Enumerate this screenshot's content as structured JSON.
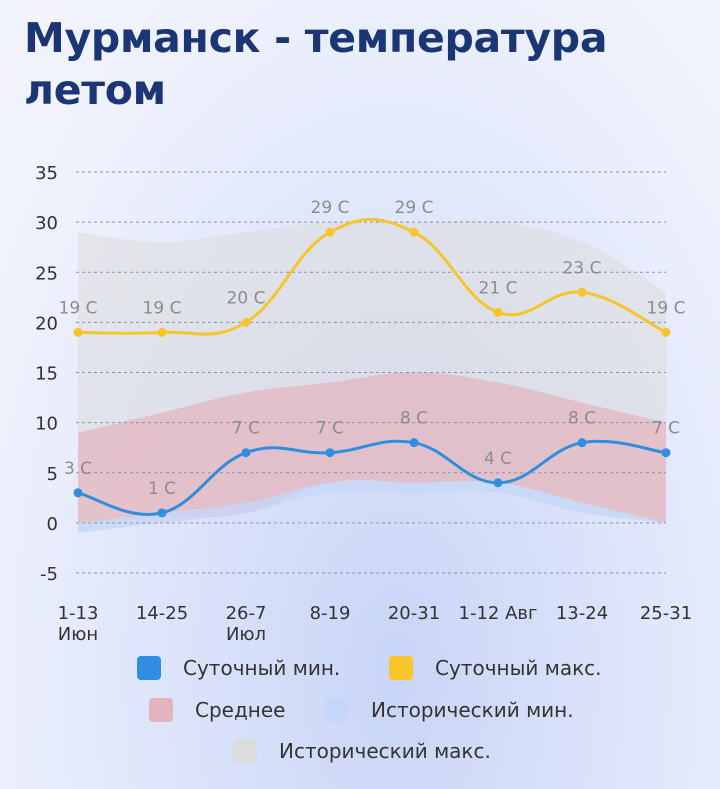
{
  "title": "Мурманск - температура летом",
  "colors": {
    "daily_min": "#2f8ee0",
    "daily_max": "#f7c52b",
    "average": "#e5b3bd",
    "historic_min": "#c4d7fb",
    "historic_max": "#dcdcdc"
  },
  "chart_data": {
    "type": "line",
    "categories": [
      "1-13 Июн",
      "14-25",
      "26-7 Июл",
      "8-19",
      "20-31",
      "1-12 Авг",
      "13-24",
      "25-31"
    ],
    "category_lines": [
      [
        "1-13",
        "Июн"
      ],
      [
        "14-25"
      ],
      [
        "26-7",
        "Июл"
      ],
      [
        "8-19"
      ],
      [
        "20-31"
      ],
      [
        "1-12 Авг"
      ],
      [
        "13-24"
      ],
      [
        "25-31"
      ]
    ],
    "ylim": [
      -5,
      35
    ],
    "yticks": [
      35,
      30,
      25,
      20,
      15,
      10,
      5,
      0,
      -5
    ],
    "grid": true,
    "series": [
      {
        "name": "Суточный мин.",
        "type": "line",
        "values": [
          3,
          1,
          7,
          7,
          8,
          4,
          8,
          7
        ],
        "labels": [
          "3 C",
          "1 C",
          "7 C",
          "7 C",
          "8 C",
          "4 C",
          "8 C",
          "7 C"
        ]
      },
      {
        "name": "Суточный макс.",
        "type": "line",
        "values": [
          19,
          19,
          20,
          29,
          29,
          21,
          23,
          19
        ],
        "labels": [
          "19 C",
          "19 C",
          "20 C",
          "29 C",
          "29 C",
          "21 C",
          "23 C",
          "19 C"
        ]
      },
      {
        "name": "Среднее",
        "type": "area",
        "lower": [
          0,
          0.5,
          1,
          4,
          4,
          4,
          2,
          0
        ],
        "upper": [
          9,
          11,
          13,
          14,
          15,
          14,
          12,
          10
        ]
      },
      {
        "name": "Исторический мин.",
        "type": "area",
        "lower": [
          -1,
          0,
          1,
          3,
          3,
          3,
          1,
          0
        ],
        "upper": [
          0,
          1,
          2,
          4,
          4,
          4,
          2,
          0
        ]
      },
      {
        "name": "Исторический макс.",
        "type": "area",
        "lower": [
          -1,
          0,
          1,
          3,
          3,
          3,
          1,
          0
        ],
        "upper": [
          29,
          28,
          29,
          30,
          30,
          30,
          28,
          23
        ]
      }
    ]
  },
  "legend": {
    "daily_min": "Суточный мин.",
    "daily_max": "Суточный макс.",
    "average": "Среднее",
    "historic_min": "Исторический мин.",
    "historic_max": "Исторический макс."
  }
}
